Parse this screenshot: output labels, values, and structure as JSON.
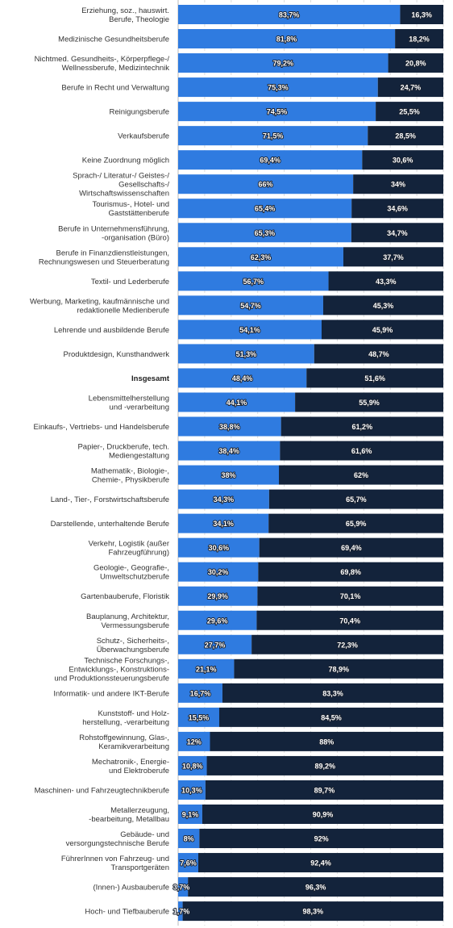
{
  "chart_data": {
    "type": "bar",
    "orientation": "horizontal",
    "stacked": true,
    "xlim": [
      0,
      100
    ],
    "grid": true,
    "categories": [
      [
        "Erziehung, soz., hauswirt.",
        "Berufe, Theologie"
      ],
      [
        "Medizinische Gesundheitsberufe"
      ],
      [
        "Nichtmed. Gesundheits-, Körperpflege-/",
        "Wellnessberufe, Medizintechnik"
      ],
      [
        "Berufe in Recht und Verwaltung"
      ],
      [
        "Reinigungsberufe"
      ],
      [
        "Verkaufsberufe"
      ],
      [
        "Keine Zuordnung möglich"
      ],
      [
        "Sprach-/ Literatur-/ Geistes-/",
        "Gesellschafts-/",
        "Wirtschaftswissenschaften"
      ],
      [
        "Tourismus-, Hotel- und",
        "Gaststättenberufe"
      ],
      [
        "Berufe in Unternehmensführung,",
        "-organisation (Büro)"
      ],
      [
        "Berufe in Finanzdienstleistungen,",
        "Rechnungswesen und Steuerberatung"
      ],
      [
        "Textil- und Lederberufe"
      ],
      [
        "Werbung, Marketing, kaufmännische und",
        "redaktionelle Medienberufe"
      ],
      [
        "Lehrende und ausbildende Berufe"
      ],
      [
        "Produktdesign, Kunsthandwerk"
      ],
      [
        "Insgesamt"
      ],
      [
        "Lebensmittelherstellung",
        "und -verarbeitung"
      ],
      [
        "Einkaufs-, Vertriebs- und Handelsberufe"
      ],
      [
        "Papier-, Druckberufe, tech.",
        "Mediengestaltung"
      ],
      [
        "Mathematik-, Biologie-,",
        "Chemie-, Physikberufe"
      ],
      [
        "Land-, Tier-, Forstwirtschaftsberufe"
      ],
      [
        "Darstellende, unterhaltende Berufe"
      ],
      [
        "Verkehr, Logistik (außer",
        "Fahrzeugführung)"
      ],
      [
        "Geologie-, Geografie-,",
        "Umweltschutzberufe"
      ],
      [
        "Gartenbauberufe, Floristik"
      ],
      [
        "Bauplanung, Architektur,",
        "Vermessungsberufe"
      ],
      [
        "Schutz-, Sicherheits-,",
        "Überwachungsberufe"
      ],
      [
        "Technische Forschungs-,",
        "Entwicklungs-, Konstruktions-",
        "und Produktionssteuerungsberufe"
      ],
      [
        "Informatik- und andere IKT-Berufe"
      ],
      [
        "Kunststoff- und Holz-",
        "herstellung, -verarbeitung"
      ],
      [
        "Rohstoffgewinnung, Glas-,",
        "Keramikverarbeitung"
      ],
      [
        "Mechatronik-, Energie-",
        "und Elektroberufe"
      ],
      [
        "Maschinen- und Fahrzeugtechnikberufe"
      ],
      [
        "Metallerzeugung,",
        "-bearbeitung, Metallbau"
      ],
      [
        "Gebäude- und",
        "versorgungstechnische Berufe"
      ],
      [
        "FührerInnen von Fahrzeug- und",
        "Transportgeräten"
      ],
      [
        "(Innen-) Ausbauberufe"
      ],
      [
        "Hoch- und Tiefbauberufe"
      ]
    ],
    "bold_categories": [
      "Insgesamt"
    ],
    "series": [
      {
        "color": "#2f7be0",
        "values": [
          83.7,
          81.8,
          79.2,
          75.3,
          74.5,
          71.5,
          69.4,
          66,
          65.4,
          65.3,
          62.3,
          56.7,
          54.7,
          54.1,
          51.3,
          48.4,
          44.1,
          38.8,
          38.4,
          38,
          34.3,
          34.1,
          30.6,
          30.2,
          29.9,
          29.6,
          27.7,
          21.1,
          16.7,
          15.5,
          12,
          10.8,
          10.3,
          9.1,
          8,
          7.6,
          3.7,
          1.7
        ],
        "labels": [
          "83,7%",
          "81,8%",
          "79,2%",
          "75,3%",
          "74,5%",
          "71,5%",
          "69,4%",
          "66%",
          "65,4%",
          "65,3%",
          "62,3%",
          "56,7%",
          "54,7%",
          "54,1%",
          "51,3%",
          "48,4%",
          "44,1%",
          "38,8%",
          "38,4%",
          "38%",
          "34,3%",
          "34,1%",
          "30,6%",
          "30,2%",
          "29,9%",
          "29,6%",
          "27,7%",
          "21,1%",
          "16,7%",
          "15,5%",
          "12%",
          "10,8%",
          "10,3%",
          "9,1%",
          "8%",
          "7,6%",
          "3,7%",
          "1,7%"
        ]
      },
      {
        "color": "#13233b",
        "values": [
          16.3,
          18.2,
          20.8,
          24.7,
          25.5,
          28.5,
          30.6,
          34,
          34.6,
          34.7,
          37.7,
          43.3,
          45.3,
          45.9,
          48.7,
          51.6,
          55.9,
          61.2,
          61.6,
          62,
          65.7,
          65.9,
          69.4,
          69.8,
          70.1,
          70.4,
          72.3,
          78.9,
          83.3,
          84.5,
          88,
          89.2,
          89.7,
          90.9,
          92,
          92.4,
          96.3,
          98.3
        ],
        "labels": [
          "16,3%",
          "18,2%",
          "20,8%",
          "24,7%",
          "25,5%",
          "28,5%",
          "30,6%",
          "34%",
          "34,6%",
          "34,7%",
          "37,7%",
          "43,3%",
          "45,3%",
          "45,9%",
          "48,7%",
          "51,6%",
          "55,9%",
          "61,2%",
          "61,6%",
          "62%",
          "65,7%",
          "65,9%",
          "69,4%",
          "69,8%",
          "70,1%",
          "70,4%",
          "72,3%",
          "78,9%",
          "83,3%",
          "84,5%",
          "88%",
          "89,2%",
          "89,7%",
          "90,9%",
          "92%",
          "92,4%",
          "96,3%",
          "98,3%"
        ]
      }
    ]
  }
}
